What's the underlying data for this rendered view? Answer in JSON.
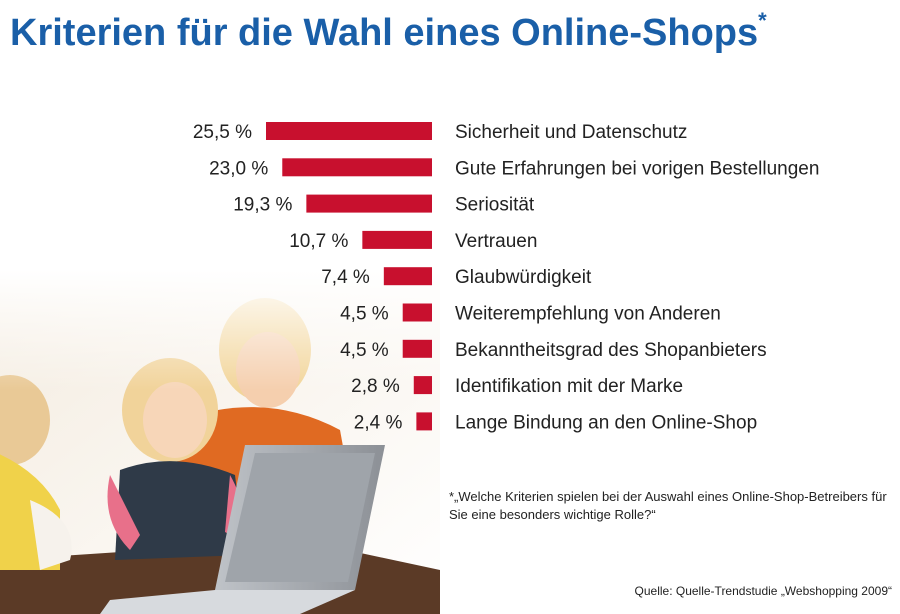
{
  "title": "Kriterien für die Wahl eines Online-Shops",
  "title_mark": "*",
  "footnote": "*„Welche Kriterien spielen bei der Auswahl eines Online-Shop-Betreibers für Sie eine besonders wichtige Rolle?“",
  "source": "Quelle: Quelle-Trendstudie „Webshopping 2009“",
  "colors": {
    "bar": "#c8102e",
    "title": "#1a5fa8"
  },
  "chart_data": {
    "type": "bar",
    "orientation": "horizontal",
    "title": "Kriterien für die Wahl eines Online-Shops",
    "categories": [
      "Sicherheit und Datenschutz",
      "Gute Erfahrungen bei vorigen Bestellungen",
      "Seriosität",
      "Vertrauen",
      "Glaubwürdigkeit",
      "Weiterempfehlung von Anderen",
      "Bekanntheitsgrad des Shopanbieters",
      "Identifikation mit der Marke",
      "Lange Bindung an den Online-Shop"
    ],
    "values": [
      25.5,
      23.0,
      19.3,
      10.7,
      7.4,
      4.5,
      4.5,
      2.8,
      2.4
    ],
    "value_labels": [
      "25,5 %",
      "23,0 %",
      "19,3 %",
      "10,7 %",
      "7,4 %",
      "4,5 %",
      "4,5 %",
      "2,8 %",
      "2,4 %"
    ],
    "unit": "%",
    "xlim": [
      0,
      25.5
    ],
    "grid": false
  }
}
